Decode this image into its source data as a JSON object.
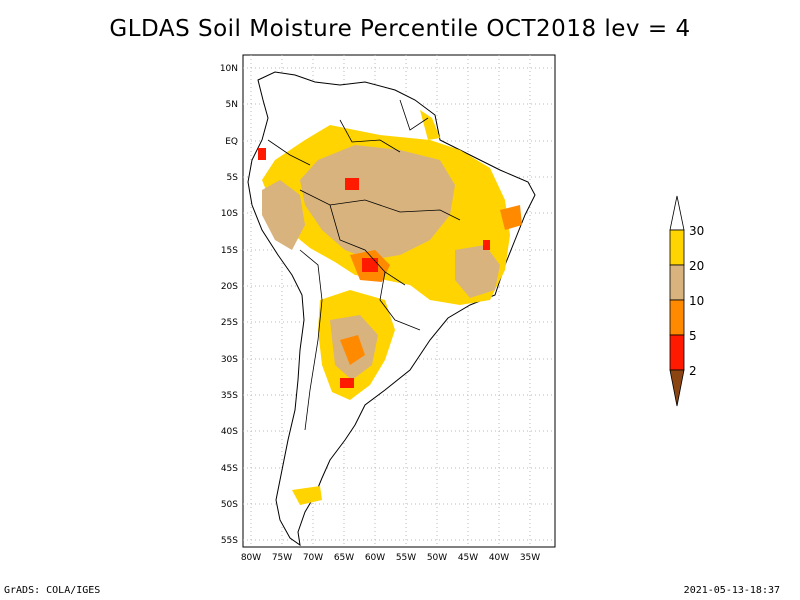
{
  "title": "GLDAS Soil Moisture Percentile OCT2018 lev = 4",
  "footer": {
    "left": "GrADS: COLA/IGES",
    "right": "2021-05-13-18:37"
  },
  "map": {
    "lat_ticks": [
      "10N",
      "5N",
      "EQ",
      "5S",
      "10S",
      "15S",
      "20S",
      "25S",
      "30S",
      "35S",
      "40S",
      "45S",
      "50S",
      "55S"
    ],
    "lon_ticks": [
      "80W",
      "75W",
      "70W",
      "65W",
      "60W",
      "55W",
      "50W",
      "45W",
      "40W",
      "35W"
    ]
  },
  "legend": {
    "labels": [
      "30",
      "20",
      "10",
      "5",
      "2"
    ],
    "colors": {
      "above_30": "#ffffff",
      "20_30": "#ffd400",
      "10_20": "#d8b37e",
      "5_10": "#ff8a00",
      "2_5": "#ff1a00",
      "below_2": "#8b4513"
    }
  }
}
